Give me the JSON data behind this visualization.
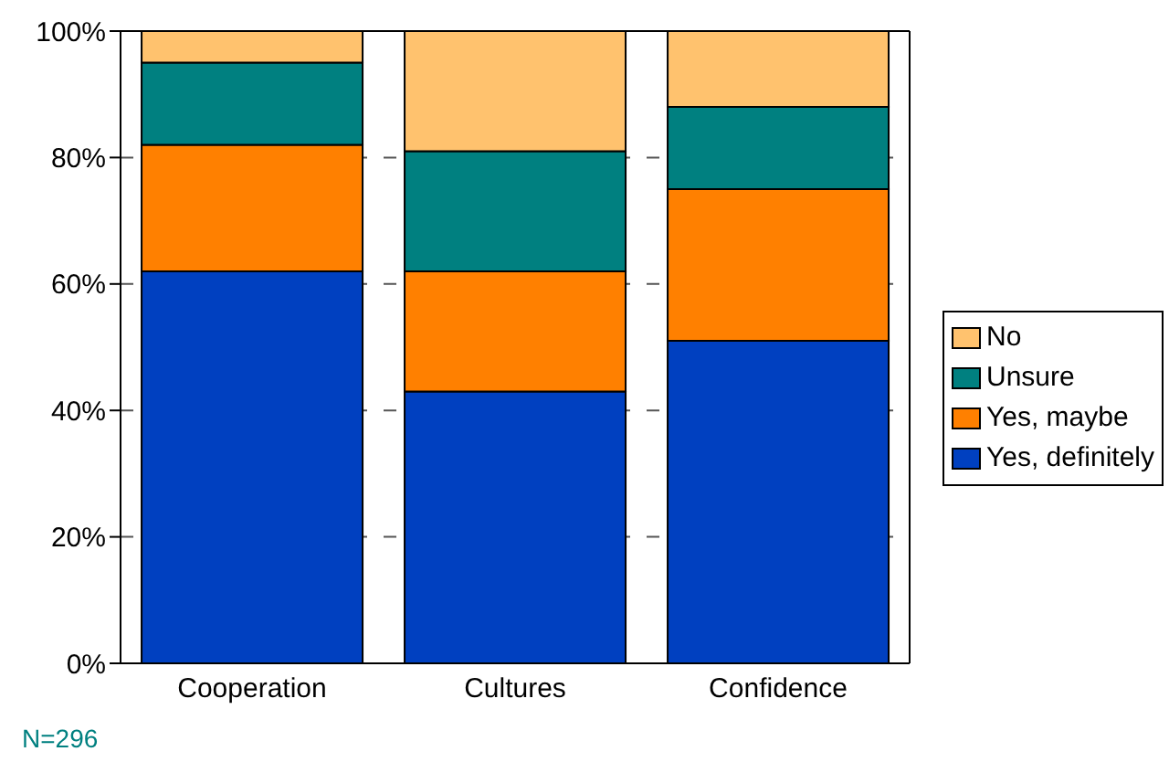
{
  "chart_data": {
    "type": "bar",
    "stacked": true,
    "categories": [
      "Cooperation",
      "Cultures",
      "Confidence"
    ],
    "series": [
      {
        "name": "Yes, definitely",
        "color": "#0040c0",
        "values": [
          62,
          43,
          51
        ]
      },
      {
        "name": "Yes, maybe",
        "color": "#ff8000",
        "values": [
          20,
          19,
          24
        ]
      },
      {
        "name": "Unsure",
        "color": "#008080",
        "values": [
          13,
          19,
          13
        ]
      },
      {
        "name": "No",
        "color": "#ffc26e",
        "values": [
          5,
          19,
          12
        ]
      }
    ],
    "ylim": [
      0,
      100
    ],
    "yticks": [
      {
        "value": 0,
        "label": "0%"
      },
      {
        "value": 20,
        "label": "20%"
      },
      {
        "value": 40,
        "label": "40%"
      },
      {
        "value": 60,
        "label": "60%"
      },
      {
        "value": 80,
        "label": "80%"
      },
      {
        "value": 100,
        "label": "100%"
      }
    ],
    "grid": "y",
    "legend": "right",
    "annotations": [
      "N=296"
    ]
  }
}
